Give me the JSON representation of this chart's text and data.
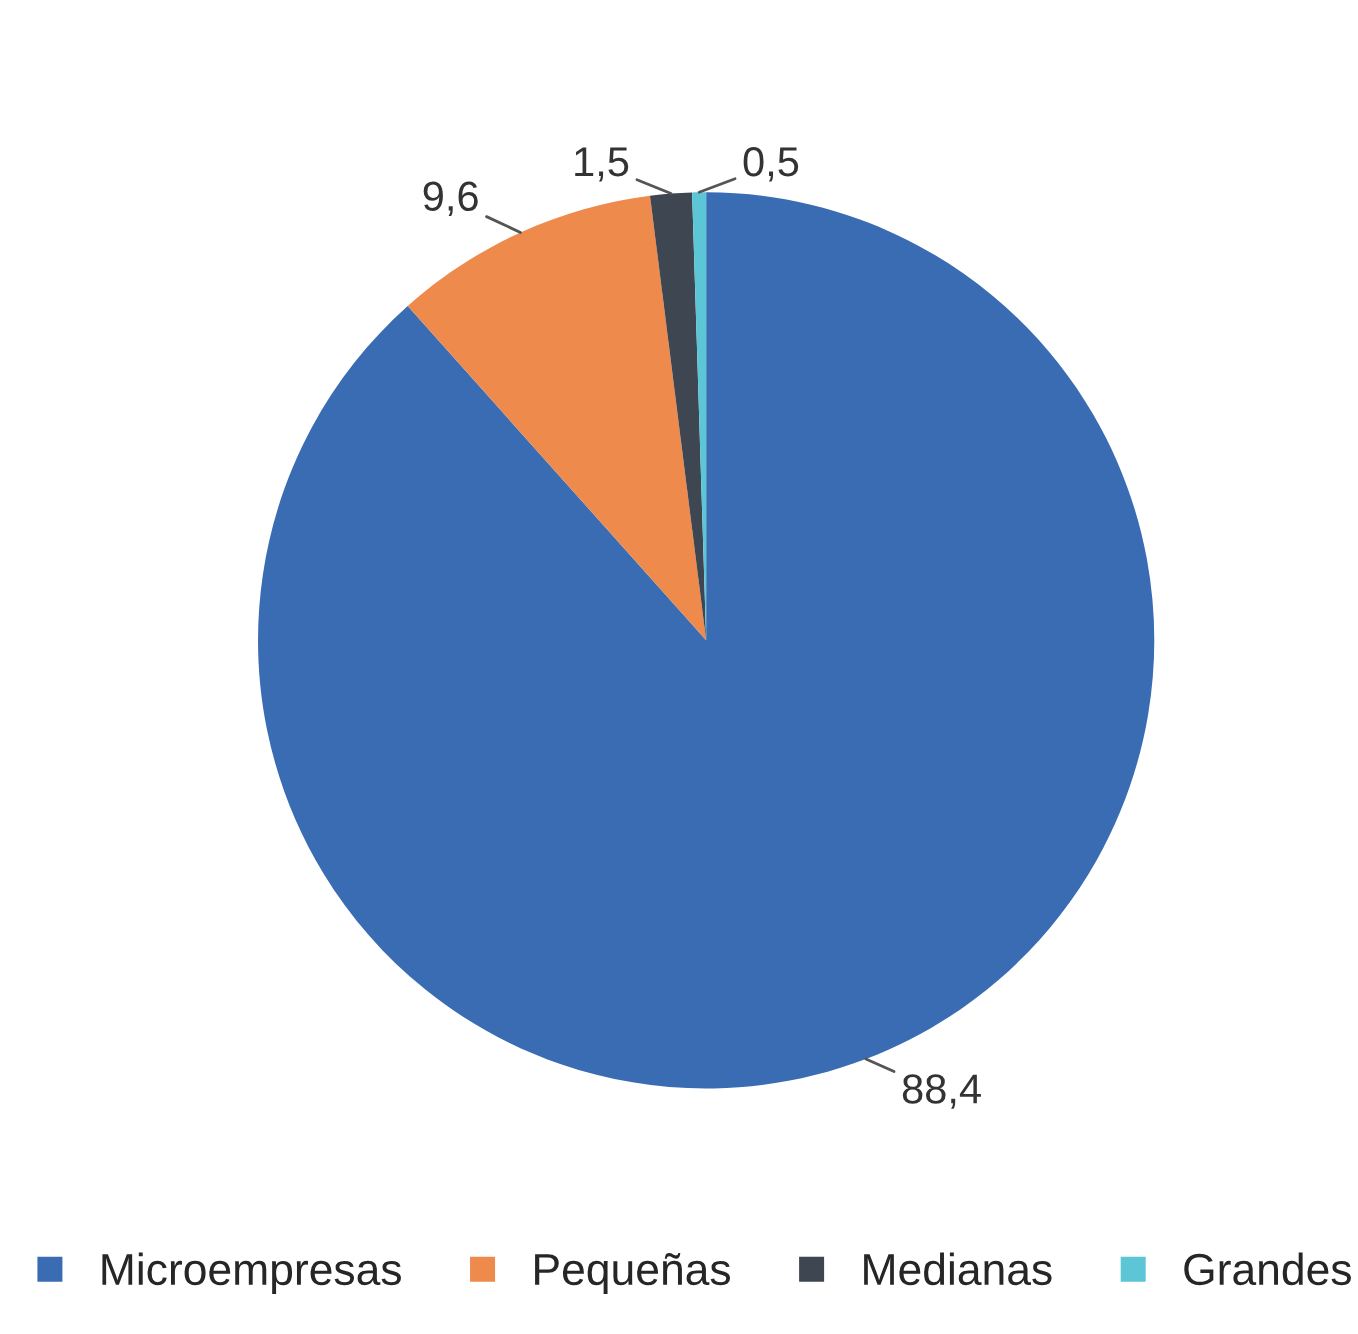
{
  "chart_data": {
    "type": "pie",
    "categories": [
      "Microempresas",
      "Pequeñas",
      "Medianas",
      "Grandes"
    ],
    "values": [
      88.4,
      9.6,
      1.5,
      0.5
    ],
    "value_labels": [
      "88,4",
      "9,6",
      "1,5",
      "0,5"
    ],
    "colors": [
      "#3a6cb4",
      "#ee8a4c",
      "#3e4652",
      "#5cc6d6"
    ],
    "legend": "bottom"
  }
}
